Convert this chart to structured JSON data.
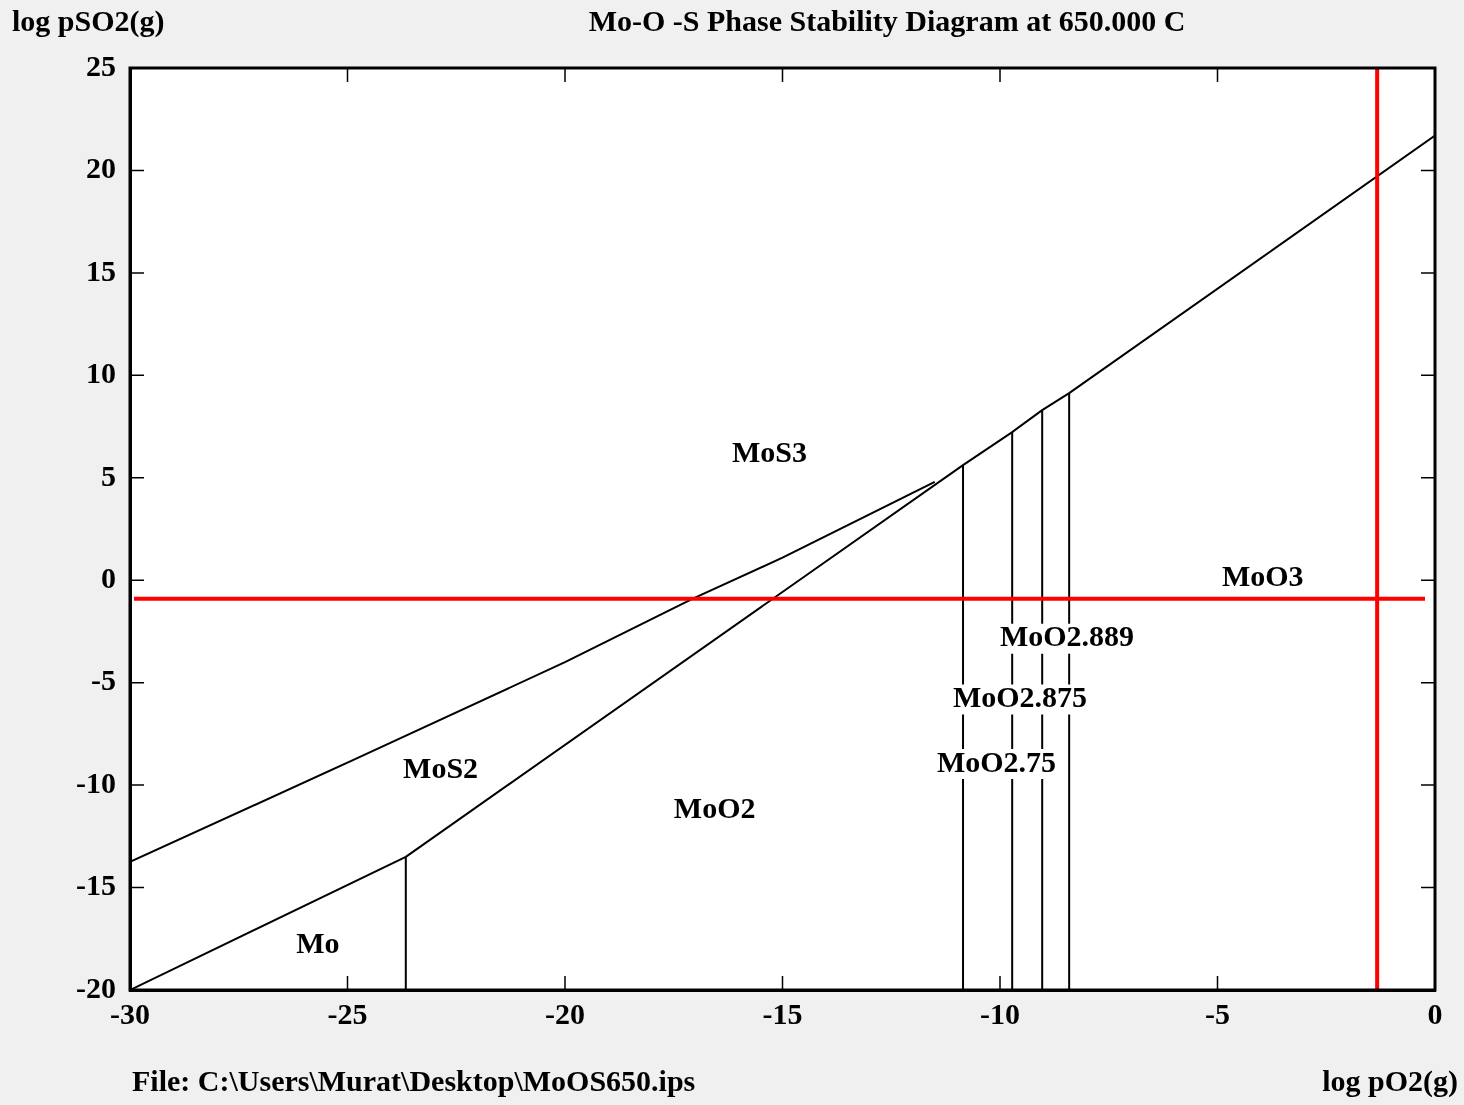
{
  "chart_data": {
    "type": "line",
    "title": "Mo-O -S Phase Stability Diagram at  650.000 C",
    "xlabel": "log pO2(g)",
    "ylabel": "log pSO2(g)",
    "xlim": [
      -30,
      0
    ],
    "ylim": [
      -20,
      25
    ],
    "xticks": [
      -30,
      -25,
      -20,
      -15,
      -10,
      -5,
      0
    ],
    "yticks": [
      -20,
      -15,
      -10,
      -5,
      0,
      5,
      10,
      15,
      20,
      25
    ],
    "grid": false,
    "legend": false,
    "marker": "none",
    "line_style": "solid",
    "series": [
      {
        "type": "line",
        "color": "#000000",
        "x": [
          -30,
          -25,
          -20,
          -17.06,
          -15,
          -11.5
        ],
        "values": [
          -13.75,
          -8.9,
          -4.0,
          -0.9,
          1.1,
          4.8
        ]
      },
      {
        "type": "line",
        "color": "#000000",
        "x": [
          -30,
          -23.66,
          -10.85,
          -9.72,
          -9.03,
          -8.41,
          0
        ],
        "values": [
          -20,
          -13.5,
          5.62,
          7.23,
          8.3,
          9.13,
          21.7
        ]
      },
      {
        "type": "line",
        "color": "#000000",
        "x": [
          -23.66,
          -23.66
        ],
        "values": [
          -20,
          -13.5
        ]
      },
      {
        "type": "line",
        "color": "#000000",
        "x": [
          -10.85,
          -10.85
        ],
        "values": [
          -20,
          5.62
        ]
      },
      {
        "type": "line",
        "color": "#000000",
        "x": [
          -9.72,
          -9.72
        ],
        "values": [
          -20,
          7.23
        ]
      },
      {
        "type": "line",
        "color": "#000000",
        "x": [
          -9.03,
          -9.03
        ],
        "values": [
          -20,
          8.3
        ]
      },
      {
        "type": "line",
        "color": "#000000",
        "x": [
          -8.41,
          -8.41
        ],
        "values": [
          -20,
          9.13
        ]
      }
    ],
    "ref_lines": [
      {
        "axis": "y",
        "value": -0.9,
        "color": "#ff0000"
      },
      {
        "axis": "x",
        "value": -1.33,
        "color": "#ff0000"
      }
    ],
    "annotations": [
      "MoS3",
      "MoO3",
      "MoO2.889",
      "MoO2.875",
      "MoO2.75",
      "MoS2",
      "MoO2",
      "Mo",
      "File: C:\\Users\\Murat\\Desktop\\MoOS650.ips"
    ]
  }
}
